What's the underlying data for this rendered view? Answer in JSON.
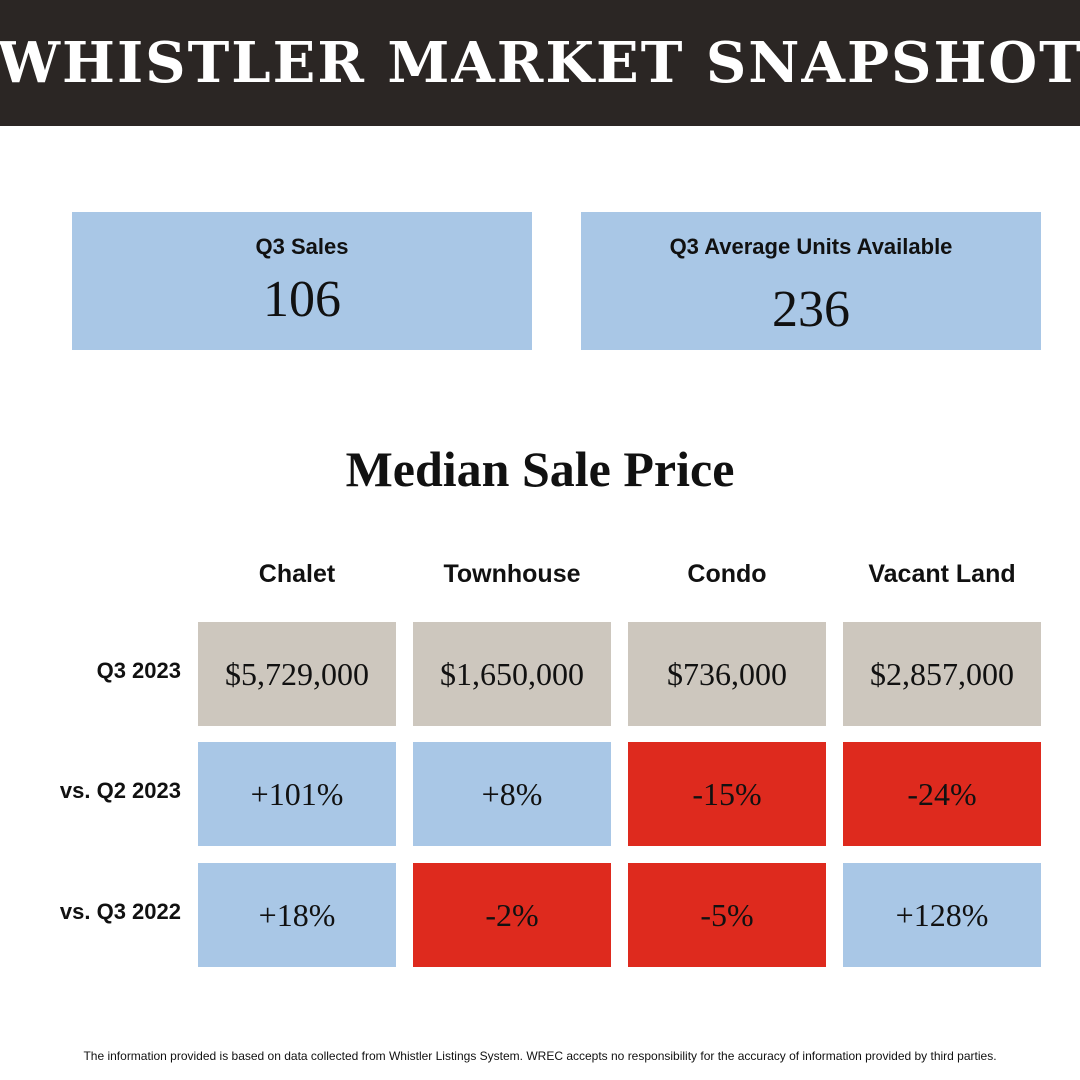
{
  "header": {
    "title": "WHISTLER MARKET SNAPSHOT"
  },
  "stats": {
    "sales": {
      "label": "Q3 Sales",
      "value": "106"
    },
    "units": {
      "label": "Q3 Average Units Available",
      "value": "236"
    }
  },
  "colors": {
    "header_bg": "#2b2624",
    "blue": "#a9c7e6",
    "beige": "#cdc7be",
    "red": "#de2a1e"
  },
  "chart_data": {
    "type": "table",
    "title": "Median Sale Price",
    "columns": [
      "Chalet",
      "Townhouse",
      "Condo",
      "Vacant Land"
    ],
    "rows": [
      {
        "label": "Q3 2023",
        "values": [
          "$5,729,000",
          "$1,650,000",
          "$736,000",
          "$2,857,000"
        ]
      },
      {
        "label": "vs. Q2 2023",
        "values": [
          "+101%",
          "+8%",
          "-15%",
          "-24%"
        ]
      },
      {
        "label": "vs. Q3 2022",
        "values": [
          "+18%",
          "-2%",
          "-5%",
          "+128%"
        ]
      }
    ]
  },
  "footer": {
    "disclaimer": "The information provided is based on data collected from Whistler Listings System. WREC accepts no responsibility for the accuracy of information provided by third parties."
  }
}
